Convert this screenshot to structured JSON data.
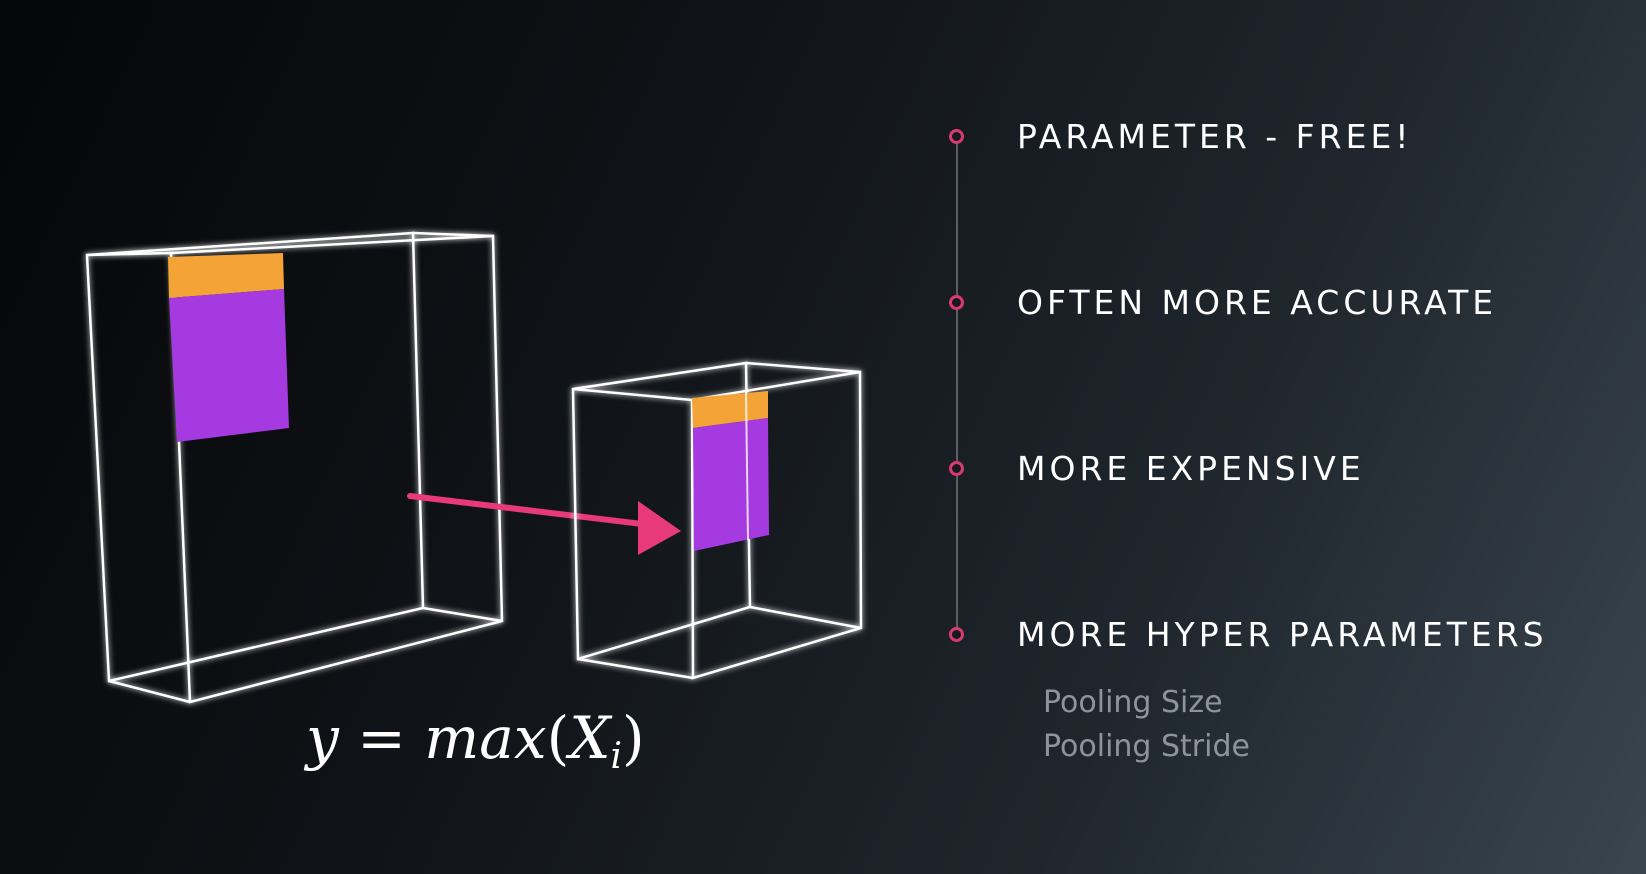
{
  "colors": {
    "accent": "#d93a6e",
    "arrow": "#e8397a",
    "pool_top": "#f4a336",
    "pool_body": "#a43ae0",
    "wire": "#ffffff",
    "sub_text": "#8d949c"
  },
  "list": {
    "items": [
      {
        "label": "PARAMETER - FREE!",
        "icon": "circle-bullet-icon"
      },
      {
        "label": "OFTEN MORE ACCURATE",
        "icon": "circle-bullet-icon"
      },
      {
        "label": "MORE EXPENSIVE",
        "icon": "circle-bullet-icon"
      },
      {
        "label": "MORE HYPER PARAMETERS",
        "icon": "circle-bullet-icon"
      }
    ],
    "sub_items": [
      "Pooling Size",
      "Pooling Stride"
    ]
  },
  "formula": {
    "lhs": "y",
    "equals": "=",
    "func": "max",
    "open": "(",
    "arg": "X",
    "sub": "i",
    "close": ")"
  }
}
